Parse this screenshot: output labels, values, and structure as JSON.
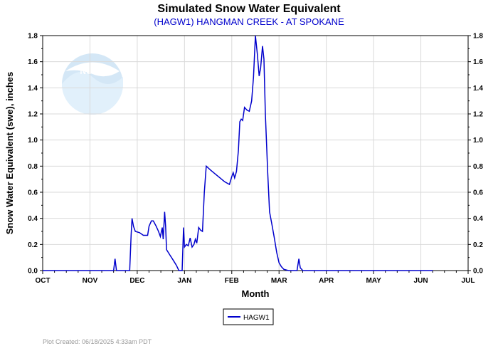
{
  "chart_data": {
    "type": "line",
    "title": "Simulated Snow Water Equivalent",
    "subtitle": "(HAGW1) HANGMAN CREEK - AT SPOKANE",
    "xlabel": "Month",
    "ylabel": "Snow Water Equivalent (swe),  inches",
    "x_ticks": [
      "OCT",
      "NOV",
      "DEC",
      "JAN",
      "FEB",
      "MAR",
      "APR",
      "MAY",
      "JUN",
      "JUL"
    ],
    "y_ticks": [
      "0.0",
      "0.2",
      "0.4",
      "0.6",
      "0.8",
      "1.0",
      "1.2",
      "1.4",
      "1.6",
      "1.8"
    ],
    "xlim": [
      0,
      9
    ],
    "ylim": [
      0,
      1.8
    ],
    "grid": true,
    "legend": {
      "placement": "bottom-center"
    },
    "series": [
      {
        "name": "HAGW1",
        "color": "#0000cc",
        "points": [
          [
            0.0,
            0.0
          ],
          [
            1.5,
            0.0
          ],
          [
            1.53,
            0.09
          ],
          [
            1.56,
            0.0
          ],
          [
            1.84,
            0.0
          ],
          [
            1.87,
            0.27
          ],
          [
            1.89,
            0.4
          ],
          [
            1.92,
            0.34
          ],
          [
            1.96,
            0.3
          ],
          [
            2.05,
            0.29
          ],
          [
            2.13,
            0.27
          ],
          [
            2.22,
            0.27
          ],
          [
            2.25,
            0.34
          ],
          [
            2.3,
            0.38
          ],
          [
            2.34,
            0.38
          ],
          [
            2.4,
            0.34
          ],
          [
            2.45,
            0.3
          ],
          [
            2.49,
            0.26
          ],
          [
            2.53,
            0.33
          ],
          [
            2.55,
            0.24
          ],
          [
            2.58,
            0.45
          ],
          [
            2.6,
            0.34
          ],
          [
            2.62,
            0.16
          ],
          [
            2.69,
            0.12
          ],
          [
            2.76,
            0.08
          ],
          [
            2.83,
            0.04
          ],
          [
            2.88,
            0.0
          ],
          [
            2.95,
            0.0
          ],
          [
            2.98,
            0.33
          ],
          [
            3.0,
            0.18
          ],
          [
            3.04,
            0.2
          ],
          [
            3.08,
            0.19
          ],
          [
            3.12,
            0.25
          ],
          [
            3.16,
            0.18
          ],
          [
            3.2,
            0.2
          ],
          [
            3.23,
            0.24
          ],
          [
            3.26,
            0.21
          ],
          [
            3.3,
            0.33
          ],
          [
            3.34,
            0.31
          ],
          [
            3.38,
            0.3
          ],
          [
            3.42,
            0.6
          ],
          [
            3.46,
            0.8
          ],
          [
            3.55,
            0.77
          ],
          [
            3.65,
            0.74
          ],
          [
            3.75,
            0.71
          ],
          [
            3.85,
            0.68
          ],
          [
            3.95,
            0.66
          ],
          [
            4.0,
            0.72
          ],
          [
            4.03,
            0.75
          ],
          [
            4.06,
            0.71
          ],
          [
            4.1,
            0.76
          ],
          [
            4.14,
            0.92
          ],
          [
            4.17,
            1.14
          ],
          [
            4.2,
            1.16
          ],
          [
            4.23,
            1.15
          ],
          [
            4.27,
            1.25
          ],
          [
            4.32,
            1.23
          ],
          [
            4.37,
            1.22
          ],
          [
            4.42,
            1.3
          ],
          [
            4.46,
            1.48
          ],
          [
            4.5,
            1.8
          ],
          [
            4.54,
            1.66
          ],
          [
            4.58,
            1.49
          ],
          [
            4.61,
            1.55
          ],
          [
            4.65,
            1.72
          ],
          [
            4.68,
            1.62
          ],
          [
            4.71,
            1.2
          ],
          [
            4.76,
            0.75
          ],
          [
            4.8,
            0.45
          ],
          [
            4.85,
            0.35
          ],
          [
            4.9,
            0.25
          ],
          [
            4.95,
            0.14
          ],
          [
            5.0,
            0.06
          ],
          [
            5.05,
            0.03
          ],
          [
            5.1,
            0.01
          ],
          [
            5.2,
            0.0
          ],
          [
            5.38,
            0.0
          ],
          [
            5.42,
            0.09
          ],
          [
            5.45,
            0.02
          ],
          [
            5.48,
            0.01
          ],
          [
            5.5,
            0.0
          ],
          [
            5.55,
            0.0
          ],
          [
            8.25,
            0.0
          ]
        ]
      }
    ]
  },
  "footer_text": "Plot Created: 06/18/2025 4:33am PDT"
}
